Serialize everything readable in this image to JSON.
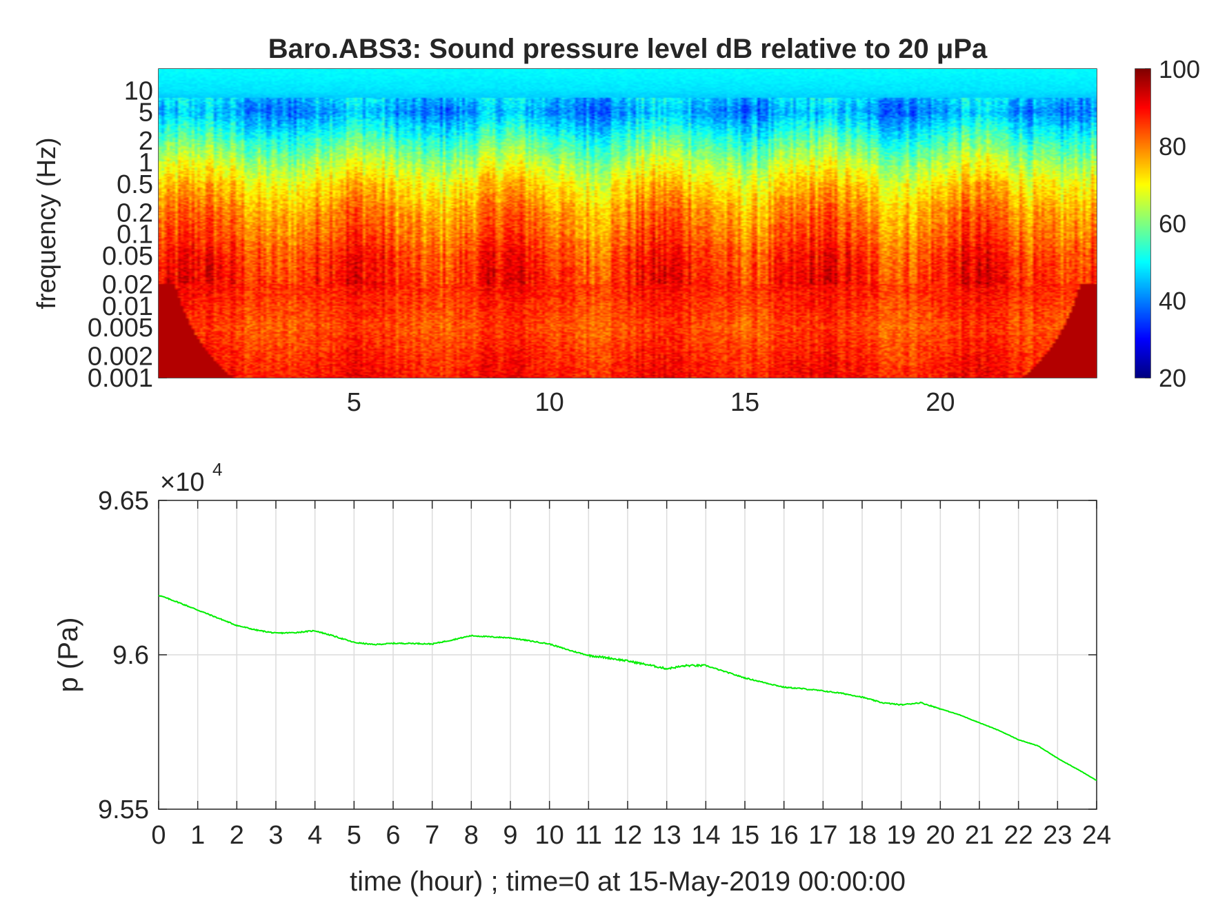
{
  "chart_data": [
    {
      "type": "heatmap",
      "title": "Baro.ABS3: Sound pressure level dB relative to 20 μPa",
      "xlabel": "",
      "ylabel": "frequency (Hz)",
      "xlim": [
        0,
        24
      ],
      "ylim": [
        0.001,
        20
      ],
      "yscale": "log",
      "x_ticks": [
        5,
        10,
        15,
        20
      ],
      "y_ticks": [
        0.001,
        0.002,
        0.005,
        0.01,
        0.02,
        0.05,
        0.1,
        0.2,
        0.5,
        1,
        2,
        5,
        10
      ],
      "y_tick_labels": [
        "0.001",
        "0.002",
        "0.005",
        "0.01",
        "0.02",
        "0.05",
        "0.1",
        "0.2",
        "0.5",
        "1",
        "2",
        "5",
        "10"
      ],
      "colormap": "jet",
      "colorbar": {
        "range": [
          20,
          100
        ],
        "ticks": [
          20,
          40,
          60,
          80,
          100
        ],
        "tick_labels": [
          "20",
          "40",
          "60",
          "80",
          "100"
        ]
      },
      "level_profile_db": [
        {
          "freq_hz": 20,
          "db": 50
        },
        {
          "freq_hz": 10,
          "db": 48
        },
        {
          "freq_hz": 5,
          "db": 42
        },
        {
          "freq_hz": 2,
          "db": 55
        },
        {
          "freq_hz": 1,
          "db": 64
        },
        {
          "freq_hz": 0.5,
          "db": 72
        },
        {
          "freq_hz": 0.2,
          "db": 79
        },
        {
          "freq_hz": 0.1,
          "db": 82
        },
        {
          "freq_hz": 0.05,
          "db": 86
        },
        {
          "freq_hz": 0.02,
          "db": 88
        },
        {
          "freq_hz": 0.01,
          "db": 86
        },
        {
          "freq_hz": 0.005,
          "db": 84
        },
        {
          "freq_hz": 0.002,
          "db": 87
        },
        {
          "freq_hz": 0.001,
          "db": 89
        }
      ],
      "grid": false,
      "legend": "none"
    },
    {
      "type": "line",
      "xlabel": "time (hour) ; time=0 at 15-May-2019 00:00:00",
      "ylabel": "p (Pa)",
      "y_exponent_label": "×10",
      "y_exponent": "4",
      "xlim": [
        0,
        24
      ],
      "ylim": [
        95500,
        96500
      ],
      "x_ticks": [
        0,
        1,
        2,
        3,
        4,
        5,
        6,
        7,
        8,
        9,
        10,
        11,
        12,
        13,
        14,
        15,
        16,
        17,
        18,
        19,
        20,
        21,
        22,
        23,
        24
      ],
      "x_tick_labels": [
        "0",
        "1",
        "2",
        "3",
        "4",
        "5",
        "6",
        "7",
        "8",
        "9",
        "10",
        "11",
        "12",
        "13",
        "14",
        "15",
        "16",
        "17",
        "18",
        "19",
        "20",
        "21",
        "22",
        "23",
        "24"
      ],
      "y_ticks": [
        95500,
        96000,
        96500
      ],
      "y_tick_labels": [
        "9.55",
        "9.6",
        "9.65"
      ],
      "grid": true,
      "legend": "none",
      "series": [
        {
          "color": "#00ee00",
          "x": [
            0,
            0.5,
            1,
            1.5,
            2,
            2.5,
            3,
            3.5,
            4,
            4.5,
            5,
            5.5,
            6,
            6.5,
            7,
            7.5,
            8,
            8.5,
            9,
            9.5,
            10,
            10.5,
            11,
            11.5,
            12,
            12.5,
            13,
            13.5,
            14,
            14.5,
            15,
            15.5,
            16,
            16.5,
            17,
            17.5,
            18,
            18.5,
            19,
            19.5,
            20,
            20.5,
            21,
            21.5,
            22,
            22.5,
            23,
            23.5,
            24
          ],
          "y": [
            96193,
            96170,
            96145,
            96120,
            96095,
            96080,
            96070,
            96072,
            96078,
            96060,
            96040,
            96033,
            96037,
            96037,
            96035,
            96048,
            96062,
            96058,
            96055,
            96045,
            96035,
            96015,
            95998,
            95990,
            95980,
            95968,
            95955,
            95965,
            95965,
            95945,
            95925,
            95910,
            95895,
            95890,
            95883,
            95875,
            95863,
            95845,
            95838,
            95845,
            95825,
            95805,
            95780,
            95755,
            95725,
            95705,
            95665,
            95630,
            95593
          ]
        }
      ]
    }
  ]
}
